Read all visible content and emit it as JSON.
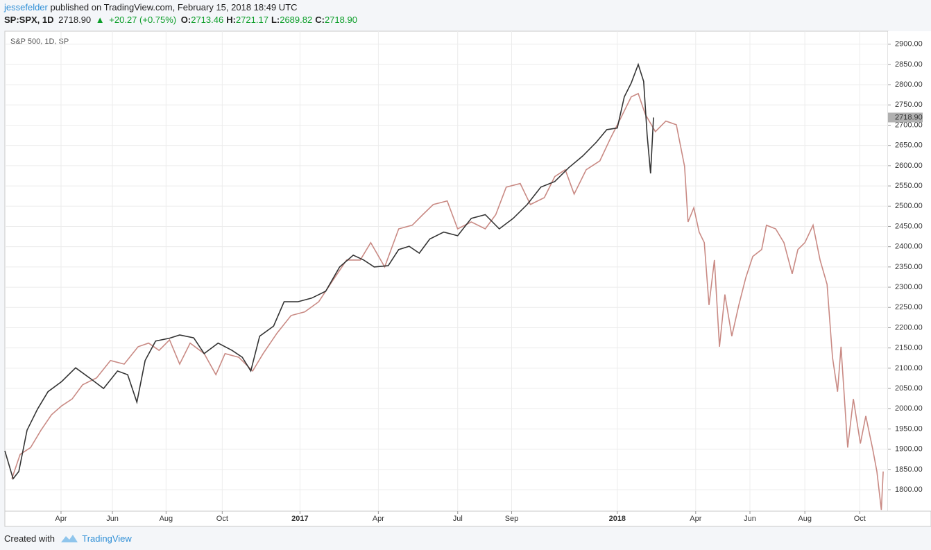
{
  "header": {
    "author": "jessefelder",
    "published": "published on TradingView.com, February 15, 2018 18:49 UTC",
    "symbol": "SP:SPX, 1D",
    "last": "2718.90",
    "change": "+20.27 (+0.75%)",
    "ohlc": [
      {
        "key": "O:",
        "value": "2713.46"
      },
      {
        "key": "H:",
        "value": "2721.17"
      },
      {
        "key": "L:",
        "value": "2689.82"
      },
      {
        "key": "C:",
        "value": "2718.90"
      }
    ]
  },
  "footer": {
    "created": "Created with",
    "brand": "TradingView"
  },
  "chart_data": {
    "type": "line",
    "legend": "S&P 500, 1D, SP",
    "xlim": [
      2016.07,
      2018.853
    ],
    "ylim": [
      1747,
      2932
    ],
    "grid": true,
    "xticks": [
      {
        "value": 2016.247,
        "label": "Apr"
      },
      {
        "value": 2016.409,
        "label": "Jun"
      },
      {
        "value": 2016.578,
        "label": "Aug"
      },
      {
        "value": 2016.755,
        "label": "Oct"
      },
      2017,
      {
        "value": 2017.247,
        "label": "Apr"
      },
      {
        "value": 2017.497,
        "label": "Jul"
      },
      {
        "value": 2017.667,
        "label": "Sep"
      },
      2018,
      {
        "value": 2018.247,
        "label": "Apr"
      },
      {
        "value": 2018.418,
        "label": "Jun"
      },
      {
        "value": 2018.591,
        "label": "Aug"
      },
      {
        "value": 2018.764,
        "label": "Oct"
      }
    ],
    "yticks": [
      {
        "value": 1800,
        "label": "1800.00"
      },
      {
        "value": 1850,
        "label": "1850.00"
      },
      {
        "value": 1900,
        "label": "1900.00"
      },
      {
        "value": 1950,
        "label": "1950.00"
      },
      {
        "value": 2000,
        "label": "2000.00"
      },
      {
        "value": 2050,
        "label": "2050.00"
      },
      {
        "value": 2100,
        "label": "2100.00"
      },
      {
        "value": 2150,
        "label": "2150.00"
      },
      {
        "value": 2200,
        "label": "2200.00"
      },
      {
        "value": 2250,
        "label": "2250.00"
      },
      {
        "value": 2300,
        "label": "2300.00"
      },
      {
        "value": 2350,
        "label": "2350.00"
      },
      {
        "value": 2400,
        "label": "2400.00"
      },
      {
        "value": 2450,
        "label": "2450.00"
      },
      {
        "value": 2500,
        "label": "2500.00"
      },
      {
        "value": 2550,
        "label": "2550.00"
      },
      {
        "value": 2600,
        "label": "2600.00"
      },
      {
        "value": 2650,
        "label": "2650.00"
      },
      {
        "value": 2700,
        "label": "2700.00"
      },
      {
        "value": 2750,
        "label": "2750.00"
      },
      {
        "value": 2800,
        "label": "2800.00"
      },
      {
        "value": 2850,
        "label": "2850.00"
      },
      {
        "value": 2900,
        "label": "2900.00"
      }
    ],
    "last_price": {
      "value": 2718.9,
      "label": "2718.90"
    },
    "series": [
      {
        "color": "#c98a84",
        "x": [
          2016.092,
          2016.118,
          2016.151,
          2016.184,
          2016.217,
          2016.249,
          2016.282,
          2016.315,
          2016.359,
          2016.403,
          2016.446,
          2016.49,
          2016.523,
          2016.556,
          2016.589,
          2016.621,
          2016.654,
          2016.698,
          2016.735,
          2016.764,
          2016.807,
          2016.851,
          2016.884,
          2016.928,
          2016.972,
          2017.015,
          2017.059,
          2017.103,
          2017.147,
          2017.19,
          2017.223,
          2017.267,
          2017.311,
          2017.354,
          2017.387,
          2017.42,
          2017.464,
          2017.497,
          2017.54,
          2017.584,
          2017.617,
          2017.65,
          2017.694,
          2017.726,
          2017.77,
          2017.803,
          2017.836,
          2017.864,
          2017.902,
          2017.945,
          2017.978,
          2018.011,
          2018.044,
          2018.066,
          2018.088,
          2018.12,
          2018.153,
          2018.186,
          2018.212,
          2018.223,
          2018.241,
          2018.258,
          2018.274,
          2018.289,
          2018.306,
          2018.322,
          2018.339,
          2018.361,
          2018.383,
          2018.405,
          2018.427,
          2018.455,
          2018.47,
          2018.499,
          2018.525,
          2018.551,
          2018.569,
          2018.591,
          2018.617,
          2018.639,
          2018.661,
          2018.678,
          2018.694,
          2018.705,
          2018.726,
          2018.744,
          2018.766,
          2018.783,
          2018.805,
          2018.818,
          2018.832,
          2018.838
        ],
        "values": [
          1827,
          1887,
          1904,
          1947,
          1985,
          2007,
          2024,
          2059,
          2076,
          2119,
          2110,
          2153,
          2162,
          2144,
          2170,
          2110,
          2162,
          2136,
          2084,
          2136,
          2127,
          2093,
          2136,
          2187,
          2230,
          2239,
          2264,
          2316,
          2367,
          2367,
          2410,
          2350,
          2444,
          2453,
          2479,
          2504,
          2513,
          2444,
          2461,
          2444,
          2479,
          2547,
          2556,
          2504,
          2521,
          2573,
          2590,
          2530,
          2590,
          2612,
          2667,
          2718,
          2770,
          2778,
          2727,
          2684,
          2710,
          2701,
          2598,
          2461,
          2496,
          2436,
          2410,
          2256,
          2367,
          2153,
          2282,
          2179,
          2256,
          2324,
          2376,
          2393,
          2453,
          2444,
          2410,
          2333,
          2393,
          2410,
          2453,
          2367,
          2307,
          2127,
          2042,
          2153,
          1904,
          2024,
          1914,
          1982,
          1900,
          1845,
          1750,
          1845
        ]
      },
      {
        "name": "S&P 500, 1D, SP",
        "color": "#333333",
        "x": [
          2016.07,
          2016.096,
          2016.114,
          2016.14,
          2016.173,
          2016.206,
          2016.249,
          2016.293,
          2016.337,
          2016.381,
          2016.425,
          2016.457,
          2016.486,
          2016.512,
          2016.545,
          2016.589,
          2016.621,
          2016.665,
          2016.698,
          2016.742,
          2016.786,
          2016.818,
          2016.845,
          2016.873,
          2016.917,
          2016.95,
          2016.993,
          2017.037,
          2017.081,
          2017.125,
          2017.168,
          2017.201,
          2017.234,
          2017.278,
          2017.311,
          2017.344,
          2017.376,
          2017.409,
          2017.453,
          2017.497,
          2017.54,
          2017.584,
          2017.628,
          2017.672,
          2017.716,
          2017.759,
          2017.803,
          2017.847,
          2017.891,
          2017.934,
          2017.967,
          2018.0,
          2018.022,
          2018.044,
          2018.066,
          2018.083,
          2018.094,
          2018.105,
          2018.114
        ],
        "values": [
          1896,
          1827,
          1845,
          1947,
          1999,
          2042,
          2067,
          2101,
          2076,
          2050,
          2093,
          2084,
          2016,
          2119,
          2167,
          2174,
          2182,
          2175,
          2136,
          2162,
          2144,
          2127,
          2093,
          2179,
          2204,
          2264,
          2264,
          2273,
          2290,
          2350,
          2379,
          2367,
          2350,
          2353,
          2393,
          2401,
          2384,
          2419,
          2436,
          2427,
          2470,
          2479,
          2444,
          2470,
          2504,
          2547,
          2561,
          2595,
          2624,
          2658,
          2689,
          2693,
          2770,
          2804,
          2850,
          2808,
          2676,
          2581,
          2718.9
        ]
      }
    ]
  }
}
